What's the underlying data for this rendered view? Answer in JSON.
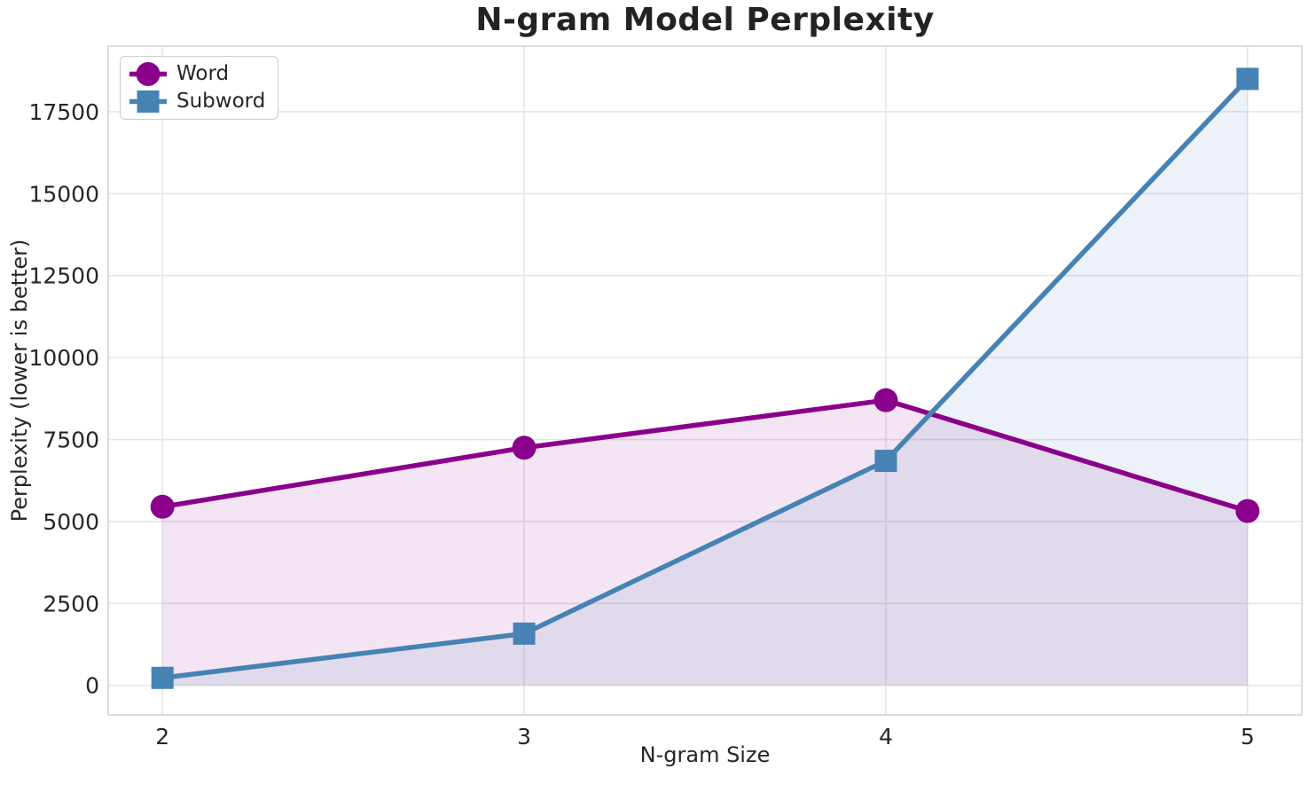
{
  "chart_data": {
    "type": "line",
    "title": "N-gram Model Perplexity",
    "xlabel": "N-gram Size",
    "ylabel": "Perplexity (lower is better)",
    "x": [
      2,
      3,
      4,
      5
    ],
    "x_tick_labels": [
      "2",
      "3",
      "4",
      "5"
    ],
    "y_ticks": [
      0,
      2500,
      5000,
      7500,
      10000,
      12500,
      15000,
      17500
    ],
    "xlim": [
      1.85,
      5.15
    ],
    "ylim": [
      -900,
      19500
    ],
    "grid": true,
    "legend_position": "upper left",
    "area_fill": true,
    "fill_baseline": 0,
    "fill_opacity": 0.1,
    "series": [
      {
        "name": "Word",
        "marker": "circle",
        "color": "#8B008B",
        "values": [
          5450,
          7250,
          8700,
          5320
        ]
      },
      {
        "name": "Subword",
        "marker": "square",
        "color": "#4682B4",
        "values": [
          230,
          1580,
          6850,
          18500
        ]
      }
    ],
    "colors": {
      "grid": "#e5e5e5",
      "spine": "#d4d4d4",
      "text": "#262626",
      "title": "#232323",
      "background": "#ffffff"
    }
  }
}
